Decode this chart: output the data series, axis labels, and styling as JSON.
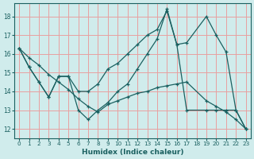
{
  "xlabel": "Humidex (Indice chaleur)",
  "bg_color": "#d0ecec",
  "grid_color": "#e8a0a0",
  "line_color": "#1a6060",
  "xlim": [
    -0.5,
    23.5
  ],
  "ylim": [
    11.5,
    18.7
  ],
  "xticks": [
    0,
    1,
    2,
    3,
    4,
    5,
    6,
    7,
    8,
    9,
    10,
    11,
    12,
    13,
    14,
    15,
    16,
    17,
    18,
    19,
    20,
    21,
    22,
    23
  ],
  "yticks": [
    12,
    13,
    14,
    15,
    16,
    17,
    18
  ],
  "line1_x": [
    0,
    1,
    2,
    3,
    4,
    5,
    6,
    7,
    8,
    9,
    10,
    11,
    12,
    13,
    14,
    15,
    16,
    17,
    19,
    20,
    21,
    22,
    23
  ],
  "line1_y": [
    16.3,
    15.3,
    14.5,
    13.7,
    14.8,
    14.8,
    14.0,
    14.0,
    14.4,
    15.2,
    15.5,
    16.0,
    16.5,
    17.0,
    17.3,
    18.3,
    16.5,
    16.6,
    18.0,
    17.0,
    16.1,
    13.0,
    12.0
  ],
  "line2_x": [
    0,
    1,
    2,
    3,
    4,
    5,
    6,
    7,
    8,
    9,
    10,
    11,
    12,
    13,
    14,
    15,
    16,
    17,
    19,
    20,
    21,
    22,
    23
  ],
  "line2_y": [
    16.3,
    15.3,
    14.5,
    13.7,
    14.8,
    14.8,
    13.0,
    12.5,
    13.0,
    13.4,
    14.0,
    14.4,
    15.2,
    16.0,
    16.8,
    18.4,
    16.5,
    13.0,
    13.0,
    13.0,
    13.0,
    13.0,
    12.0
  ],
  "line3_x": [
    0,
    1,
    2,
    3,
    4,
    5,
    6,
    7,
    8,
    9,
    10,
    11,
    12,
    13,
    14,
    15,
    16,
    17,
    19,
    20,
    21,
    22,
    23
  ],
  "line3_y": [
    16.3,
    15.8,
    15.4,
    14.9,
    14.5,
    14.1,
    13.6,
    13.2,
    12.9,
    13.3,
    13.5,
    13.7,
    13.9,
    14.0,
    14.2,
    14.3,
    14.4,
    14.5,
    13.5,
    13.2,
    12.9,
    12.5,
    12.0
  ]
}
